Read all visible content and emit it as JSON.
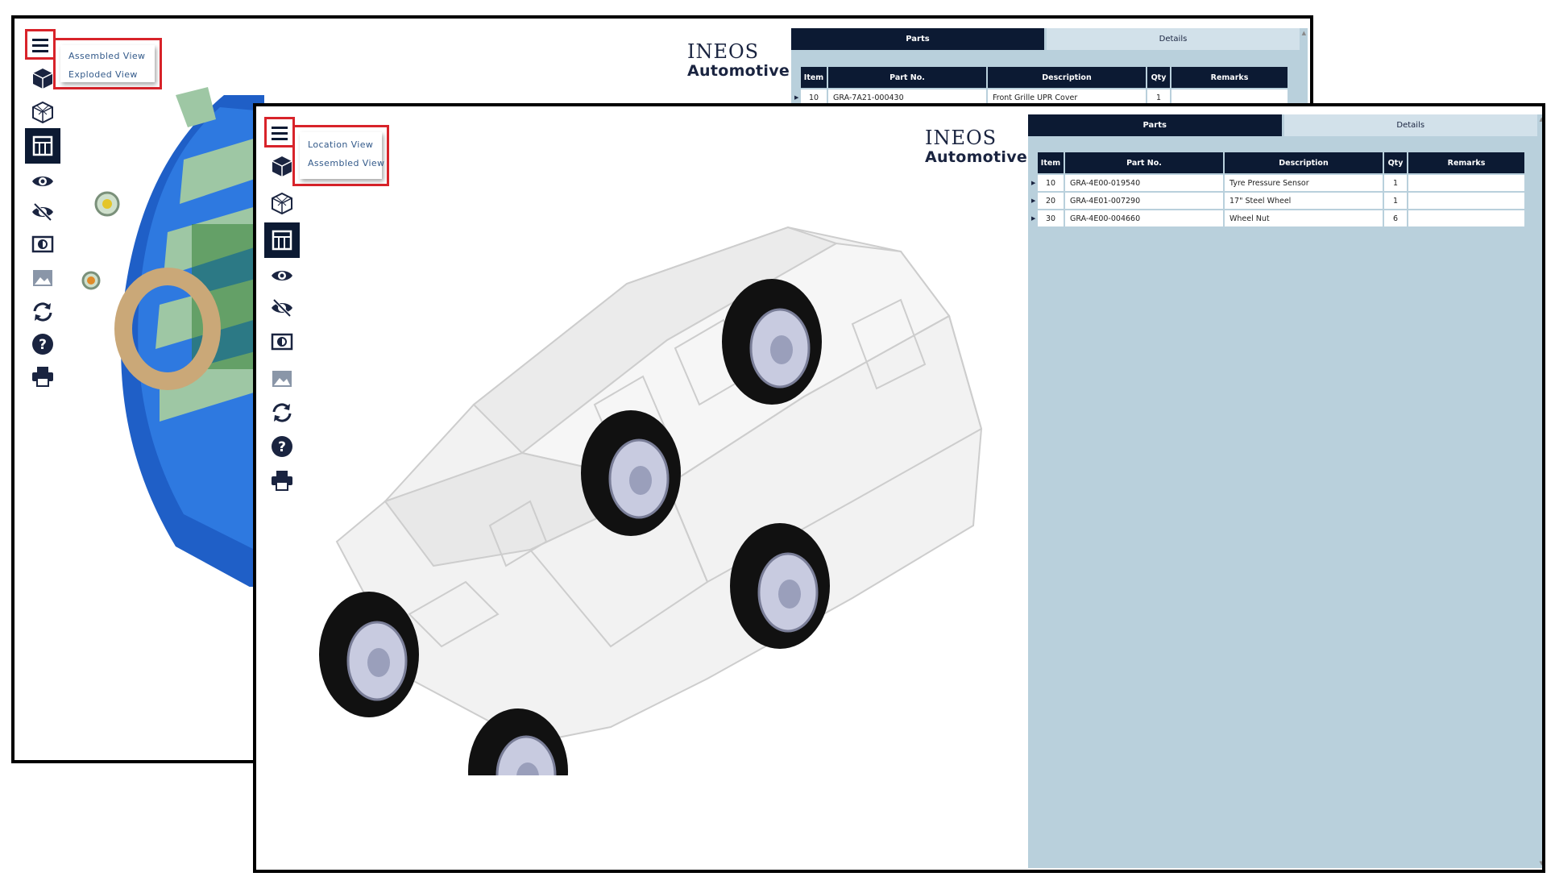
{
  "back_window": {
    "menu": {
      "items": [
        "Assembled View",
        "Exploded View"
      ]
    },
    "logo": {
      "line1": "INEOS",
      "line2": "Automotive"
    },
    "tabs": {
      "parts": "Parts",
      "details": "Details"
    },
    "table": {
      "headers": [
        "Item",
        "Part No.",
        "Description",
        "Qty",
        "Remarks"
      ],
      "rows": [
        {
          "item": "10",
          "part_no": "GRA-7A21-000430",
          "description": "Front Grille UPR Cover",
          "qty": "1",
          "remarks": ""
        }
      ]
    }
  },
  "front_window": {
    "menu": {
      "items": [
        "Location View",
        "Assembled View"
      ]
    },
    "logo": {
      "line1": "INEOS",
      "line2": "Automotive"
    },
    "tabs": {
      "parts": "Parts",
      "details": "Details"
    },
    "table": {
      "headers": [
        "Item",
        "Part No.",
        "Description",
        "Qty",
        "Remarks"
      ],
      "rows": [
        {
          "item": "10",
          "part_no": "GRA-4E00-019540",
          "description": "Tyre Pressure Sensor",
          "qty": "1",
          "remarks": ""
        },
        {
          "item": "20",
          "part_no": "GRA-4E01-007290",
          "description": "17\" Steel Wheel",
          "qty": "1",
          "remarks": ""
        },
        {
          "item": "30",
          "part_no": "GRA-4E00-004660",
          "description": "Wheel Nut",
          "qty": "6",
          "remarks": ""
        }
      ]
    }
  },
  "toolbar_icons": [
    "menu-icon",
    "cube-solid-icon",
    "cube-wireframe-icon",
    "table-layout-icon",
    "eye-icon",
    "eye-slash-icon",
    "contrast-icon",
    "image-icon",
    "rotate-icon",
    "help-icon",
    "print-icon"
  ],
  "colors": {
    "navy": "#0c1a33",
    "panel_blue": "#b9d0dc",
    "highlight_red": "#d8232a",
    "menu_text": "#335a8a"
  }
}
